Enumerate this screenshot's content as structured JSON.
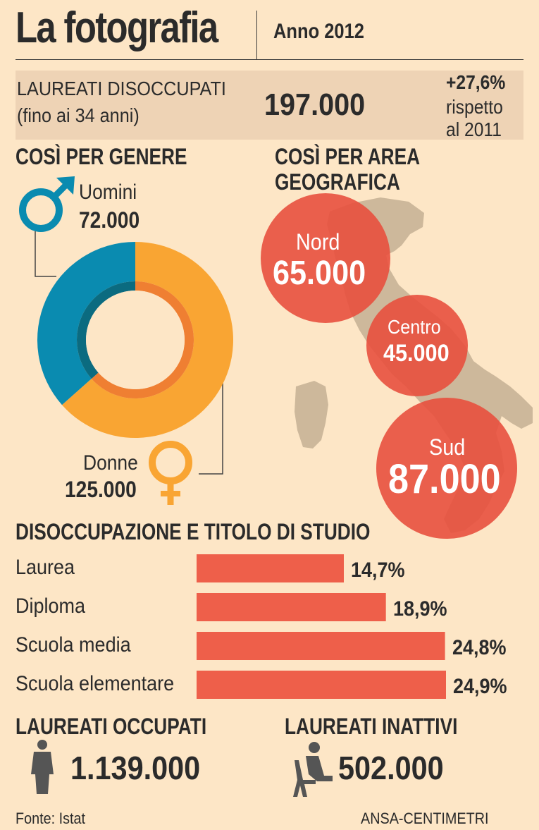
{
  "header": {
    "title": "La fotografia",
    "year": "Anno 2012"
  },
  "summary": {
    "label_line1": "LAUREATI DISOCCUPATI",
    "label_line2": "(fino ai 34 anni)",
    "total": "197.000",
    "change": "+27,6%",
    "change_line2": "rispetto",
    "change_line3": "al 2011"
  },
  "gender": {
    "title": "COSÌ PER GENERE",
    "men_label": "Uomini",
    "men_value": "72.000",
    "women_label": "Donne",
    "women_value": "125.000"
  },
  "area": {
    "title_line1": "COSÌ PER AREA",
    "title_line2": "GEOGRAFICA",
    "nord_label": "Nord",
    "nord_value": "65.000",
    "centro_label": "Centro",
    "centro_value": "45.000",
    "sud_label": "Sud",
    "sud_value": "87.000"
  },
  "education": {
    "title": "DISOCCUPAZIONE E TITOLO DI STUDIO"
  },
  "employed": {
    "title": "LAUREATI OCCUPATI",
    "value": "1.139.000"
  },
  "inactive": {
    "title": "LAUREATI INATTIVI",
    "value": "502.000"
  },
  "footer": {
    "source": "Fonte: Istat",
    "credit": "ANSA-CENTIMETRI"
  },
  "colors": {
    "men": "#0a8bb0",
    "women": "#f9a533",
    "bars": "#ee5f4a",
    "bubbles": "#e8503e",
    "map": "#cdb89b"
  },
  "chart_data": [
    {
      "type": "pie",
      "categories": [
        "Uomini",
        "Donne"
      ],
      "values": [
        72000,
        125000
      ]
    },
    {
      "type": "bar",
      "orientation": "horizontal",
      "categories": [
        "Laurea",
        "Diploma",
        "Scuola media",
        "Scuola elementare"
      ],
      "values": [
        14.7,
        18.9,
        24.8,
        24.9
      ],
      "value_labels": [
        "14,7%",
        "18,9%",
        "24,8%",
        "24,9%"
      ]
    }
  ]
}
